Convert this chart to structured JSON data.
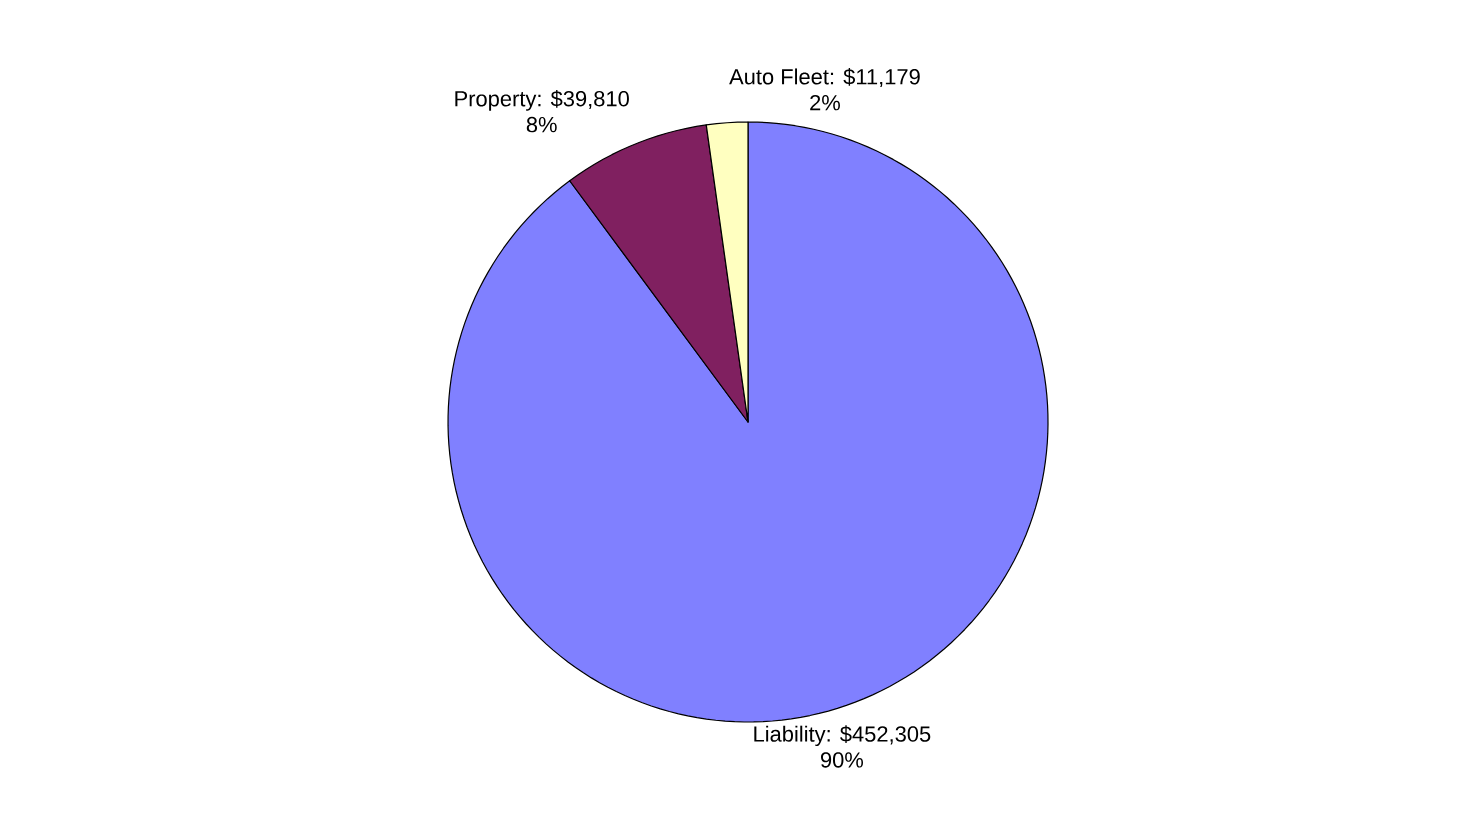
{
  "chart_data": {
    "type": "pie",
    "values": [
      452305,
      39810,
      11179
    ],
    "value_labels": [
      "Liability: $452,305",
      "Property: $39,810",
      "Auto Fleet: $11,179"
    ],
    "annotations": [
      "90%",
      "8%",
      "2%"
    ],
    "colors": [
      "#8080ff",
      "#802060",
      "#ffffc0"
    ]
  }
}
